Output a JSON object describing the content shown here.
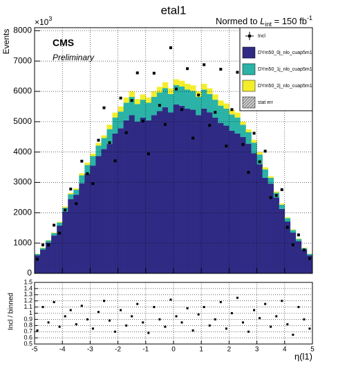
{
  "chart_data": {
    "type": "stacked_histogram",
    "title": "etal1",
    "lumi": {
      "prefix": "Normed to ",
      "symbol": "L",
      "sub": "int",
      "mid": " = 150 fb",
      "sup": "-1"
    },
    "y_multiplier": {
      "base": "×10",
      "exp": "3"
    },
    "cms_label": "CMS",
    "preliminary_label": "Preliminary",
    "ylabel": "Events",
    "xlabel": "η(l1)",
    "xlim": [
      -5,
      5
    ],
    "xticks": [
      -5,
      -4,
      -3,
      -2,
      -1,
      0,
      1,
      2,
      3,
      4,
      5
    ],
    "ylim": [
      0,
      8100
    ],
    "yticks": [
      0,
      1000,
      2000,
      3000,
      4000,
      5000,
      6000,
      7000,
      8000
    ],
    "grid": true,
    "legend": "top-right",
    "bins": [
      -5,
      -4.8,
      -4.6,
      -4.4,
      -4.2,
      -4,
      -3.8,
      -3.6,
      -3.4,
      -3.2,
      -3,
      -2.8,
      -2.6,
      -2.4,
      -2.2,
      -2,
      -1.8,
      -1.6,
      -1.4,
      -1.2,
      -1,
      -0.8,
      -0.6,
      -0.4,
      -0.2,
      0,
      0.2,
      0.4,
      0.6,
      0.8,
      1,
      1.2,
      1.4,
      1.6,
      1.8,
      2,
      2.2,
      2.4,
      2.6,
      2.8,
      3,
      3.2,
      3.4,
      3.6,
      3.8,
      4,
      4.2,
      4.4,
      4.6,
      4.8,
      5
    ],
    "series": [
      {
        "name": "DYm50_0j_nlo_cuap5m1",
        "color": "#2f2b85",
        "values": [
          600,
          785,
          1020,
          1250,
          1575,
          2035,
          2450,
          2590,
          2970,
          3285,
          3555,
          3870,
          4095,
          4265,
          4610,
          4785,
          5045,
          5220,
          5005,
          5135,
          5045,
          5220,
          5350,
          5480,
          5305,
          5570,
          5525,
          5435,
          5395,
          5220,
          5435,
          5305,
          5135,
          4960,
          4870,
          4700,
          4610,
          4500,
          4275,
          3960,
          3600,
          3150,
          2960,
          2500,
          2125,
          1710,
          1345,
          1065,
          785,
          600
        ]
      },
      {
        "name": "DYm50_1j_nlo_cuap5m1",
        "color": "#2ab3a6",
        "values": [
          40,
          50,
          65,
          80,
          100,
          130,
          160,
          170,
          265,
          290,
          315,
          345,
          365,
          490,
          530,
          550,
          580,
          600,
          575,
          590,
          580,
          600,
          615,
          630,
          610,
          640,
          635,
          625,
          620,
          600,
          625,
          610,
          590,
          570,
          560,
          540,
          530,
          400,
          380,
          350,
          320,
          280,
          190,
          160,
          140,
          110,
          85,
          70,
          50,
          40
        ]
      },
      {
        "name": "DYm50_2j_nlo_cuap5m1",
        "color": "#f4ee2a",
        "values": [
          10,
          15,
          15,
          20,
          25,
          35,
          40,
          40,
          65,
          75,
          80,
          85,
          90,
          145,
          160,
          165,
          175,
          180,
          170,
          175,
          175,
          180,
          185,
          190,
          185,
          190,
          190,
          190,
          185,
          180,
          190,
          185,
          175,
          170,
          170,
          160,
          160,
          100,
          95,
          90,
          80,
          70,
          50,
          40,
          35,
          30,
          20,
          15,
          15,
          10
        ]
      }
    ],
    "data_series": {
      "name": "Incl",
      "color": "#000000",
      "values": [
        470,
        940,
        940,
        1590,
        1330,
        2090,
        2780,
        2300,
        3700,
        3290,
        2960,
        4390,
        5460,
        4310,
        3710,
        5780,
        4640,
        5700,
        6610,
        5020,
        3940,
        6600,
        5540,
        4910,
        7440,
        6080,
        5400,
        6750,
        4460,
        5880,
        6880,
        4880,
        5310,
        6730,
        4200,
        5400,
        6630,
        4250,
        3330,
        4620,
        3680,
        4030,
        2500,
        2570,
        2760,
        1520,
        940,
        1270,
        770,
        490
      ]
    },
    "stat_err_label": "stat err",
    "ratio": {
      "ylabel": "Incl / binned",
      "ylim": [
        0.5,
        1.5
      ],
      "yticks": [
        0.5,
        0.6,
        0.7,
        0.8,
        0.9,
        1,
        1.1,
        1.2,
        1.3,
        1.4,
        1.5
      ],
      "values": [
        0.72,
        1.1,
        0.85,
        1.18,
        0.78,
        0.95,
        1.05,
        0.82,
        1.12,
        0.9,
        0.75,
        1.02,
        1.2,
        0.88,
        0.7,
        1.05,
        0.8,
        0.95,
        1.15,
        0.85,
        0.68,
        1.1,
        0.9,
        0.78,
        1.22,
        0.95,
        0.85,
        1.08,
        0.72,
        0.98,
        1.1,
        0.8,
        0.9,
        1.18,
        0.75,
        1.0,
        1.25,
        0.85,
        0.7,
        1.05,
        0.92,
        1.15,
        0.78,
        0.95,
        1.2,
        0.82,
        0.65,
        1.1,
        0.9,
        0.75
      ]
    }
  }
}
